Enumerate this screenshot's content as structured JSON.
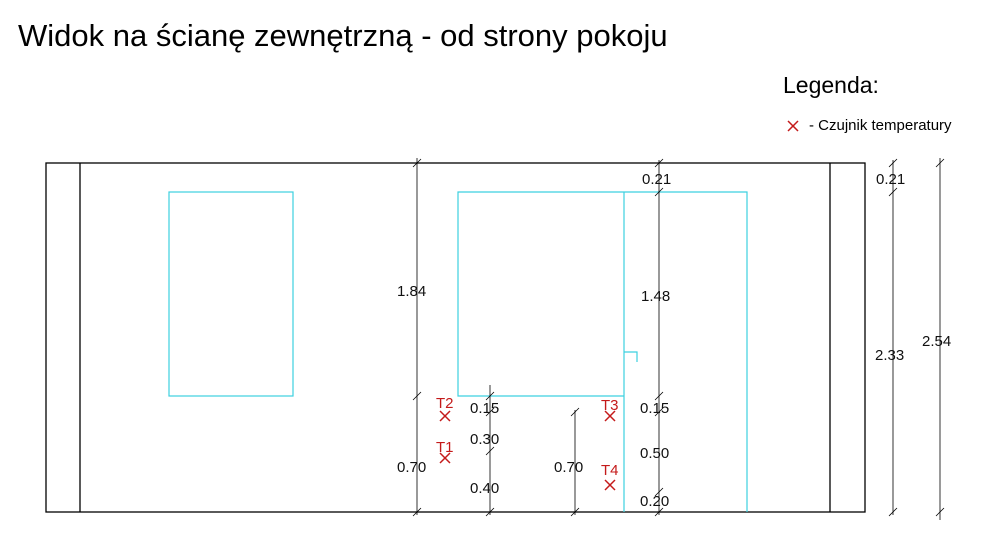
{
  "header": {
    "title": "Widok na ścianę zewnętrzną - od strony pokoju"
  },
  "legend": {
    "title": "Legenda:",
    "items": [
      {
        "label": "- Czujnik temperatury"
      }
    ]
  },
  "dimensions": [
    {
      "label": "0.21"
    },
    {
      "label": "1.48"
    },
    {
      "label": "0.15"
    },
    {
      "label": "0.50"
    },
    {
      "label": "0.20"
    },
    {
      "label": "1.84"
    },
    {
      "label": "0.70"
    },
    {
      "label": "0.15"
    },
    {
      "label": "0.30"
    },
    {
      "label": "0.40"
    },
    {
      "label": "0.70"
    },
    {
      "label": "0.21"
    },
    {
      "label": "2.33"
    },
    {
      "label": "2.54"
    }
  ],
  "sensors": [
    {
      "label": "T2"
    },
    {
      "label": "T1"
    },
    {
      "label": "T3"
    },
    {
      "label": "T4"
    }
  ]
}
